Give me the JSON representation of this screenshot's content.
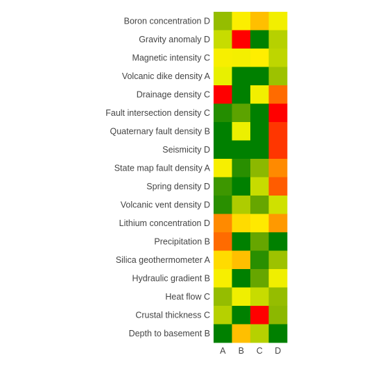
{
  "chart_data": {
    "type": "heatmap",
    "columns": [
      "A",
      "B",
      "C",
      "D"
    ],
    "rows": [
      "Boron concentration D",
      "Gravity anomaly D",
      "Magnetic intensity C",
      "Volcanic dike density A",
      "Drainage density C",
      "Fault intersection density C",
      "Quaternary fault density B",
      "Seismicity D",
      "State map fault density A",
      "Spring density D",
      "Volcanic vent density D",
      "Lithium concentration D",
      "Precipitation B",
      "Silica geothermometer A",
      "Hydraulic gradient B",
      "Heat flow C",
      "Crustal thickness C",
      "Depth to basement B"
    ],
    "colorscale": [
      [
        0.0,
        "#008000"
      ],
      [
        0.25,
        "#80b000"
      ],
      [
        0.5,
        "#e8f000"
      ],
      [
        0.62,
        "#ffee00"
      ],
      [
        0.8,
        "#ff9900"
      ],
      [
        1.0,
        "#ff0000"
      ]
    ],
    "values": [
      [
        0.3,
        0.6,
        0.72,
        0.55
      ],
      [
        0.42,
        1.0,
        0.0,
        0.38
      ],
      [
        0.58,
        0.56,
        0.62,
        0.4
      ],
      [
        0.5,
        0.0,
        0.0,
        0.32
      ],
      [
        1.0,
        0.0,
        0.55,
        0.86
      ],
      [
        0.07,
        0.18,
        0.0,
        1.0
      ],
      [
        0.0,
        0.52,
        0.0,
        0.93
      ],
      [
        0.0,
        0.0,
        0.0,
        0.93
      ],
      [
        0.58,
        0.08,
        0.28,
        0.82
      ],
      [
        0.12,
        0.0,
        0.42,
        0.88
      ],
      [
        0.08,
        0.36,
        0.2,
        0.44
      ],
      [
        0.82,
        0.66,
        0.63,
        0.8
      ],
      [
        0.86,
        0.0,
        0.2,
        0.0
      ],
      [
        0.66,
        0.72,
        0.08,
        0.32
      ],
      [
        0.58,
        0.0,
        0.2,
        0.54
      ],
      [
        0.3,
        0.54,
        0.42,
        0.3
      ],
      [
        0.38,
        0.0,
        1.0,
        0.28
      ],
      [
        0.0,
        0.72,
        0.38,
        0.0
      ]
    ]
  }
}
